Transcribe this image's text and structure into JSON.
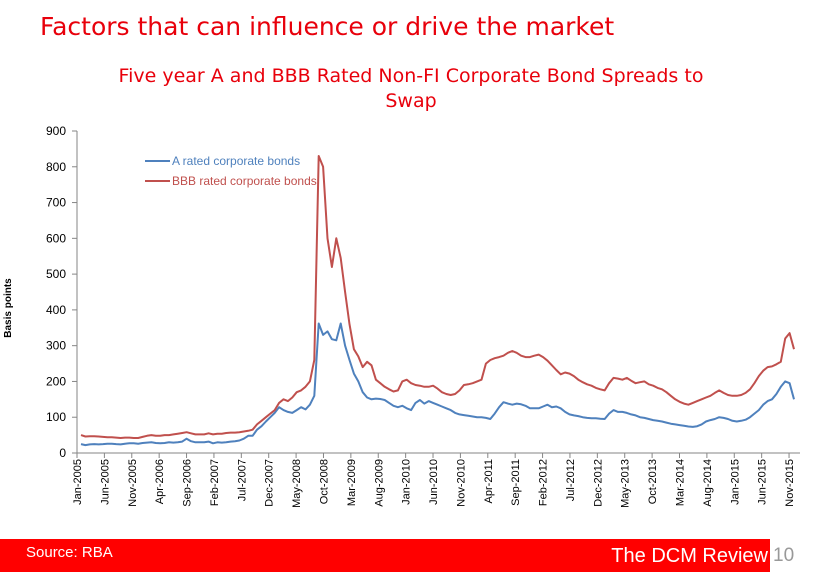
{
  "slide": {
    "title": "Factors that can influence or drive the market",
    "source": "Source: RBA",
    "brand": "The DCM Review",
    "page_number": "10"
  },
  "colors": {
    "title": "#e8000b",
    "series_a": "#4f81bd",
    "series_bbb": "#c0504d",
    "footer_bar": "#ff0000"
  },
  "chart_data": {
    "type": "line",
    "title": "Five year A and BBB Rated Non-FI Corporate Bond Spreads to Swap",
    "title_lines": [
      "Five year A and BBB Rated Non-FI Corporate Bond Spreads to",
      "Swap"
    ],
    "ylabel": "Basis points",
    "xlabel": "",
    "ylim": [
      0,
      900
    ],
    "yticks": [
      0,
      100,
      200,
      300,
      400,
      500,
      600,
      700,
      800,
      900
    ],
    "grid": false,
    "legend_position": "top-left",
    "x_tick_labels": [
      "Jan-2005",
      "Jun-2005",
      "Nov-2005",
      "Apr-2006",
      "Sep-2006",
      "Feb-2007",
      "Jul-2007",
      "Dec-2007",
      "May-2008",
      "Oct-2008",
      "Mar-2009",
      "Aug-2009",
      "Jan-2010",
      "Jun-2010",
      "Nov-2010",
      "Apr-2011",
      "Sep-2011",
      "Feb-2012",
      "Jul-2012",
      "Dec-2012",
      "May-2013",
      "Oct-2013",
      "Mar-2014",
      "Aug-2014",
      "Jan-2015",
      "Jun-2015",
      "Nov-2015"
    ],
    "x_start": "Jan-2005",
    "x_end": "Jan-2016",
    "series": [
      {
        "name": "A rated corporate bonds",
        "color": "#4f81bd",
        "values": [
          25,
          22,
          24,
          25,
          24,
          25,
          26,
          26,
          25,
          24,
          26,
          27,
          27,
          26,
          28,
          29,
          30,
          28,
          27,
          28,
          30,
          29,
          30,
          32,
          40,
          33,
          30,
          30,
          30,
          32,
          27,
          30,
          29,
          30,
          32,
          33,
          35,
          40,
          48,
          48,
          65,
          75,
          88,
          100,
          112,
          128,
          120,
          115,
          112,
          120,
          128,
          122,
          135,
          160,
          362,
          330,
          340,
          318,
          315,
          362,
          300,
          260,
          222,
          200,
          170,
          155,
          150,
          152,
          151,
          148,
          140,
          132,
          128,
          132,
          125,
          120,
          140,
          148,
          138,
          145,
          140,
          135,
          130,
          125,
          120,
          112,
          108,
          106,
          104,
          102,
          100,
          100,
          98,
          95,
          110,
          128,
          142,
          138,
          135,
          138,
          136,
          132,
          125,
          125,
          125,
          130,
          135,
          128,
          130,
          125,
          115,
          108,
          105,
          103,
          100,
          98,
          97,
          97,
          96,
          95,
          110,
          120,
          115,
          115,
          112,
          108,
          105,
          100,
          98,
          95,
          92,
          90,
          88,
          85,
          82,
          80,
          78,
          76,
          74,
          73,
          75,
          80,
          88,
          92,
          95,
          100,
          98,
          95,
          90,
          88,
          90,
          93,
          100,
          110,
          120,
          135,
          145,
          150,
          165,
          185,
          200,
          195,
          150
        ]
      },
      {
        "name": "BBB rated corporate bonds",
        "color": "#c0504d",
        "values": [
          50,
          46,
          47,
          47,
          46,
          45,
          44,
          44,
          43,
          42,
          43,
          43,
          42,
          42,
          45,
          48,
          50,
          48,
          48,
          50,
          50,
          52,
          54,
          56,
          58,
          55,
          52,
          52,
          52,
          55,
          52,
          54,
          54,
          56,
          57,
          57,
          58,
          60,
          62,
          65,
          80,
          90,
          100,
          110,
          120,
          140,
          150,
          145,
          155,
          170,
          175,
          185,
          200,
          260,
          830,
          800,
          600,
          520,
          600,
          545,
          450,
          360,
          290,
          270,
          240,
          255,
          245,
          205,
          195,
          185,
          178,
          172,
          175,
          200,
          205,
          195,
          190,
          188,
          185,
          185,
          188,
          180,
          170,
          165,
          162,
          165,
          175,
          190,
          192,
          195,
          200,
          205,
          250,
          260,
          265,
          268,
          272,
          280,
          285,
          280,
          272,
          268,
          268,
          272,
          275,
          268,
          258,
          245,
          232,
          220,
          225,
          222,
          215,
          205,
          198,
          192,
          188,
          182,
          178,
          175,
          195,
          210,
          208,
          205,
          210,
          202,
          195,
          198,
          200,
          192,
          188,
          182,
          178,
          170,
          160,
          150,
          143,
          138,
          135,
          140,
          145,
          150,
          155,
          160,
          168,
          175,
          168,
          162,
          160,
          160,
          162,
          168,
          178,
          195,
          215,
          230,
          240,
          242,
          248,
          255,
          320,
          335,
          290
        ]
      }
    ]
  }
}
